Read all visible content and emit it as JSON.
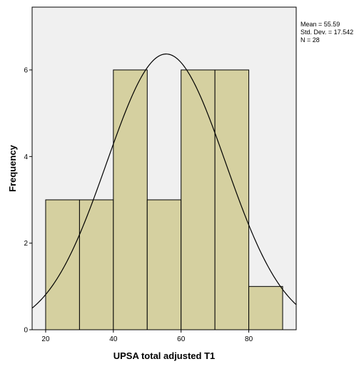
{
  "chart_data": {
    "type": "bar",
    "subtype": "histogram",
    "bins": [
      {
        "start": 20,
        "end": 30,
        "value": 3
      },
      {
        "start": 30,
        "end": 40,
        "value": 3
      },
      {
        "start": 40,
        "end": 50,
        "value": 6
      },
      {
        "start": 50,
        "end": 60,
        "value": 3
      },
      {
        "start": 60,
        "end": 70,
        "value": 6
      },
      {
        "start": 70,
        "end": 80,
        "value": 6
      },
      {
        "start": 80,
        "end": 90,
        "value": 1
      }
    ],
    "xlabel": "UPSA total adjusted T1",
    "ylabel": "Frequency",
    "xlim": [
      16,
      94
    ],
    "ylim": [
      0,
      7.45
    ],
    "xticks": [
      20,
      40,
      60,
      80
    ],
    "yticks": [
      0,
      2,
      4,
      6
    ],
    "normal_curve": {
      "mean": 55.59,
      "sd": 17.542,
      "n": 28,
      "bin_width": 10
    },
    "stats": {
      "mean_text": "Mean = 55.59",
      "sd_text": "Std. Dev. = 17.542",
      "n_text": "N = 28"
    },
    "grid": false,
    "legend": "none",
    "colors": {
      "bar_fill": "#d5d0a0",
      "bar_stroke": "#000000",
      "plot_background": "#f0f0f0",
      "curve": "#000000"
    }
  }
}
